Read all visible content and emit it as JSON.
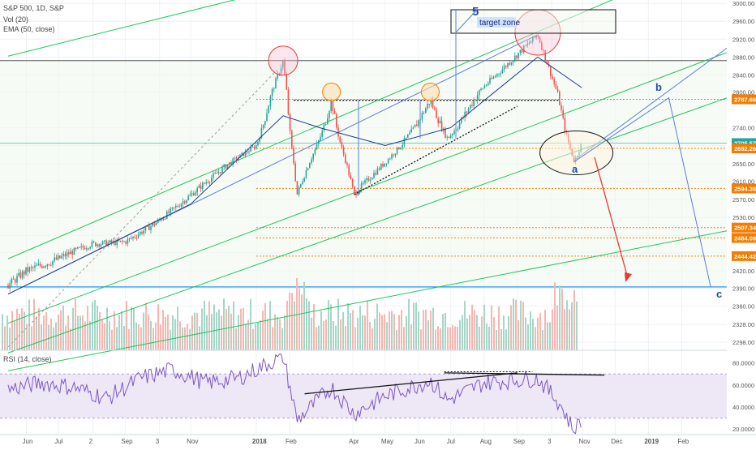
{
  "header": {
    "symbol_line": "S&P 500, 1D, S&P",
    "vol_label": "Vol (20)",
    "ema_label": "EMA (50, close)",
    "rsi_label": "RSI (14, close)"
  },
  "chart_data": {
    "type": "candlestick",
    "instrument": "S&P 500",
    "interval": "1D",
    "y_axis": {
      "range": [
        2270,
        3020
      ],
      "ticks": [
        "3000.00",
        "2960.00",
        "2920.00",
        "2880.00",
        "2840.00",
        "2800.00",
        "2740.00",
        "2700.00",
        "2650.00",
        "2610.00",
        "2570.00",
        "2530.00",
        "2490.00",
        "2450.00",
        "2420.00",
        "2390.00",
        "2360.00",
        "2328.00",
        "2298.00"
      ],
      "tick_values": [
        3000,
        2960,
        2920,
        2880,
        2840,
        2800,
        2740,
        2700,
        2650,
        2610,
        2570,
        2530,
        2490,
        2450,
        2420,
        2390,
        2360,
        2328,
        2298
      ]
    },
    "x_axis": {
      "ticks": [
        "Jun",
        "Jul",
        "2",
        "Sep",
        "3",
        "Nov",
        "2018",
        "Feb",
        "Apr",
        "May",
        "Jun",
        "Jul",
        "Aug",
        "Sep",
        "3",
        "Nov",
        "Dec",
        "2019",
        "Feb"
      ]
    },
    "price_series": [
      {
        "date": "2017-05-15",
        "close": 2395
      },
      {
        "date": "2017-06-01",
        "close": 2420
      },
      {
        "date": "2017-07-01",
        "close": 2440
      },
      {
        "date": "2017-08-01",
        "close": 2470
      },
      {
        "date": "2017-09-01",
        "close": 2475
      },
      {
        "date": "2017-10-01",
        "close": 2520
      },
      {
        "date": "2017-11-01",
        "close": 2580
      },
      {
        "date": "2017-12-01",
        "close": 2640
      },
      {
        "date": "2018-01-01",
        "close": 2700
      },
      {
        "date": "2018-01-26",
        "close": 2872
      },
      {
        "date": "2018-02-08",
        "close": 2581
      },
      {
        "date": "2018-03-12",
        "close": 2786
      },
      {
        "date": "2018-04-02",
        "close": 2581
      },
      {
        "date": "2018-05-01",
        "close": 2654
      },
      {
        "date": "2018-06-12",
        "close": 2786
      },
      {
        "date": "2018-06-28",
        "close": 2716
      },
      {
        "date": "2018-08-01",
        "close": 2813
      },
      {
        "date": "2018-09-20",
        "close": 2930
      },
      {
        "date": "2018-10-10",
        "close": 2785
      },
      {
        "date": "2018-10-24",
        "close": 2656
      },
      {
        "date": "2018-10-31",
        "close": 2705
      }
    ],
    "ema_series": [
      {
        "date": "2017-05-15",
        "value": 2380
      },
      {
        "date": "2017-08-01",
        "value": 2450
      },
      {
        "date": "2017-11-01",
        "value": 2560
      },
      {
        "date": "2018-01-26",
        "value": 2760
      },
      {
        "date": "2018-03-01",
        "value": 2740
      },
      {
        "date": "2018-05-01",
        "value": 2700
      },
      {
        "date": "2018-07-01",
        "value": 2740
      },
      {
        "date": "2018-09-20",
        "value": 2880
      },
      {
        "date": "2018-10-31",
        "value": 2810
      }
    ],
    "price_labels": [
      {
        "value": 2787.66,
        "text": "2787.66",
        "color": "#f57c00"
      },
      {
        "value": 2705.57,
        "text": "2705.57",
        "color": "#26a69a"
      },
      {
        "value": 2692.26,
        "text": "2692.26",
        "color": "#f57c00"
      },
      {
        "value": 2594.36,
        "text": "2594.36",
        "color": "#f57c00"
      },
      {
        "value": 2507.34,
        "text": "2507.34",
        "color": "#f57c00"
      },
      {
        "value": 2484.09,
        "text": "2484.09",
        "color": "#f57c00"
      },
      {
        "value": 2444.42,
        "text": "2444.42",
        "color": "#f57c00"
      }
    ],
    "annotations": {
      "wave_5": "5",
      "target_zone": "target zone",
      "wave_a": "a",
      "wave_b": "b",
      "wave_c": "c"
    },
    "projection": [
      {
        "date": "2018-10-24",
        "value": 2656
      },
      {
        "date": "2019-01-20",
        "value": 2790
      },
      {
        "date": "2019-02-28",
        "value": 2392
      }
    ],
    "rsi": {
      "ticks": [
        "80.0000",
        "60.0000",
        "40.0000",
        "20.0000"
      ],
      "tick_values": [
        80,
        60,
        40,
        20
      ],
      "range": [
        15,
        90
      ],
      "overbought": 70,
      "oversold": 30,
      "series": [
        {
          "date": "2017-05-15",
          "value": 56
        },
        {
          "date": "2017-06-15",
          "value": 62
        },
        {
          "date": "2017-07-15",
          "value": 58
        },
        {
          "date": "2017-08-15",
          "value": 48
        },
        {
          "date": "2017-09-15",
          "value": 66
        },
        {
          "date": "2017-10-15",
          "value": 74
        },
        {
          "date": "2017-11-15",
          "value": 62
        },
        {
          "date": "2017-12-15",
          "value": 66
        },
        {
          "date": "2018-01-26",
          "value": 86
        },
        {
          "date": "2018-02-08",
          "value": 28
        },
        {
          "date": "2018-03-12",
          "value": 58
        },
        {
          "date": "2018-04-02",
          "value": 34
        },
        {
          "date": "2018-05-01",
          "value": 50
        },
        {
          "date": "2018-06-12",
          "value": 64
        },
        {
          "date": "2018-06-28",
          "value": 46
        },
        {
          "date": "2018-08-01",
          "value": 62
        },
        {
          "date": "2018-09-20",
          "value": 66
        },
        {
          "date": "2018-10-10",
          "value": 44
        },
        {
          "date": "2018-10-24",
          "value": 18
        },
        {
          "date": "2018-10-31",
          "value": 30
        }
      ]
    },
    "colors": {
      "up": "#26a69a",
      "down": "#ef5350",
      "ema": "#1e3a8a",
      "channel": "#22c55e",
      "trend_blue": "#5b7fd6",
      "support_horizontal": "#2196f3",
      "resistance_horizontal": "#555555",
      "fib_orange": "#f57c00",
      "arrow": "#e53935",
      "rsi_line": "#7e57c2",
      "rsi_band": "#ede7f6"
    }
  }
}
